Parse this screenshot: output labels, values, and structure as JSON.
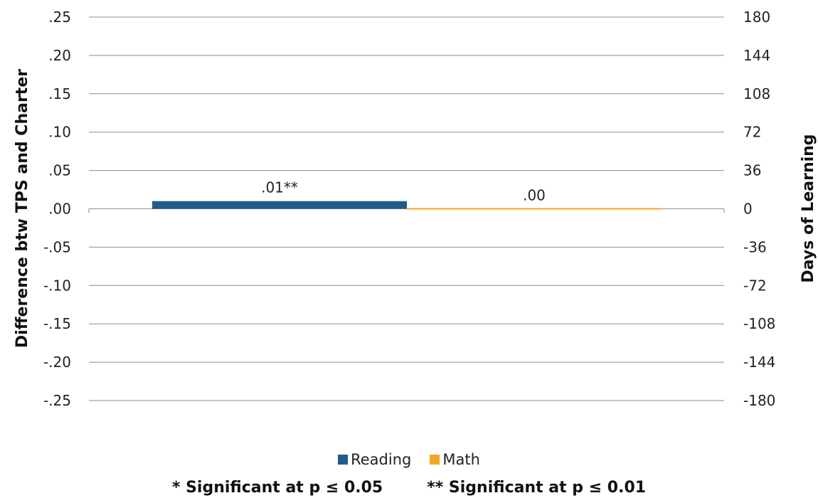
{
  "chart_data": {
    "type": "bar",
    "categories": [
      ""
    ],
    "series": [
      {
        "name": "Reading",
        "values": [
          0.01
        ],
        "label": ".01**",
        "color": "#1F5C8B"
      },
      {
        "name": "Math",
        "values": [
          0.0
        ],
        "label": ".00",
        "color": "#F5A623"
      }
    ],
    "ylabel": "Difference btw TPS and Charter",
    "y2label": "Days of Learning",
    "ylim": [
      -0.25,
      0.25
    ],
    "yticks": [
      ".25",
      ".20",
      ".15",
      ".10",
      ".05",
      ".00",
      "-.05",
      "-.10",
      "-.15",
      "-.20",
      "-.25"
    ],
    "y2ticks": [
      "180",
      "144",
      "108",
      "72",
      "36",
      "0",
      "-36",
      "-72",
      "-108",
      "-144",
      "-180"
    ],
    "grid": true,
    "legend_position": "bottom"
  },
  "footnotes": {
    "sig05": "* Significant at p ≤ 0.05",
    "sig01": "** Significant at p ≤ 0.01"
  }
}
